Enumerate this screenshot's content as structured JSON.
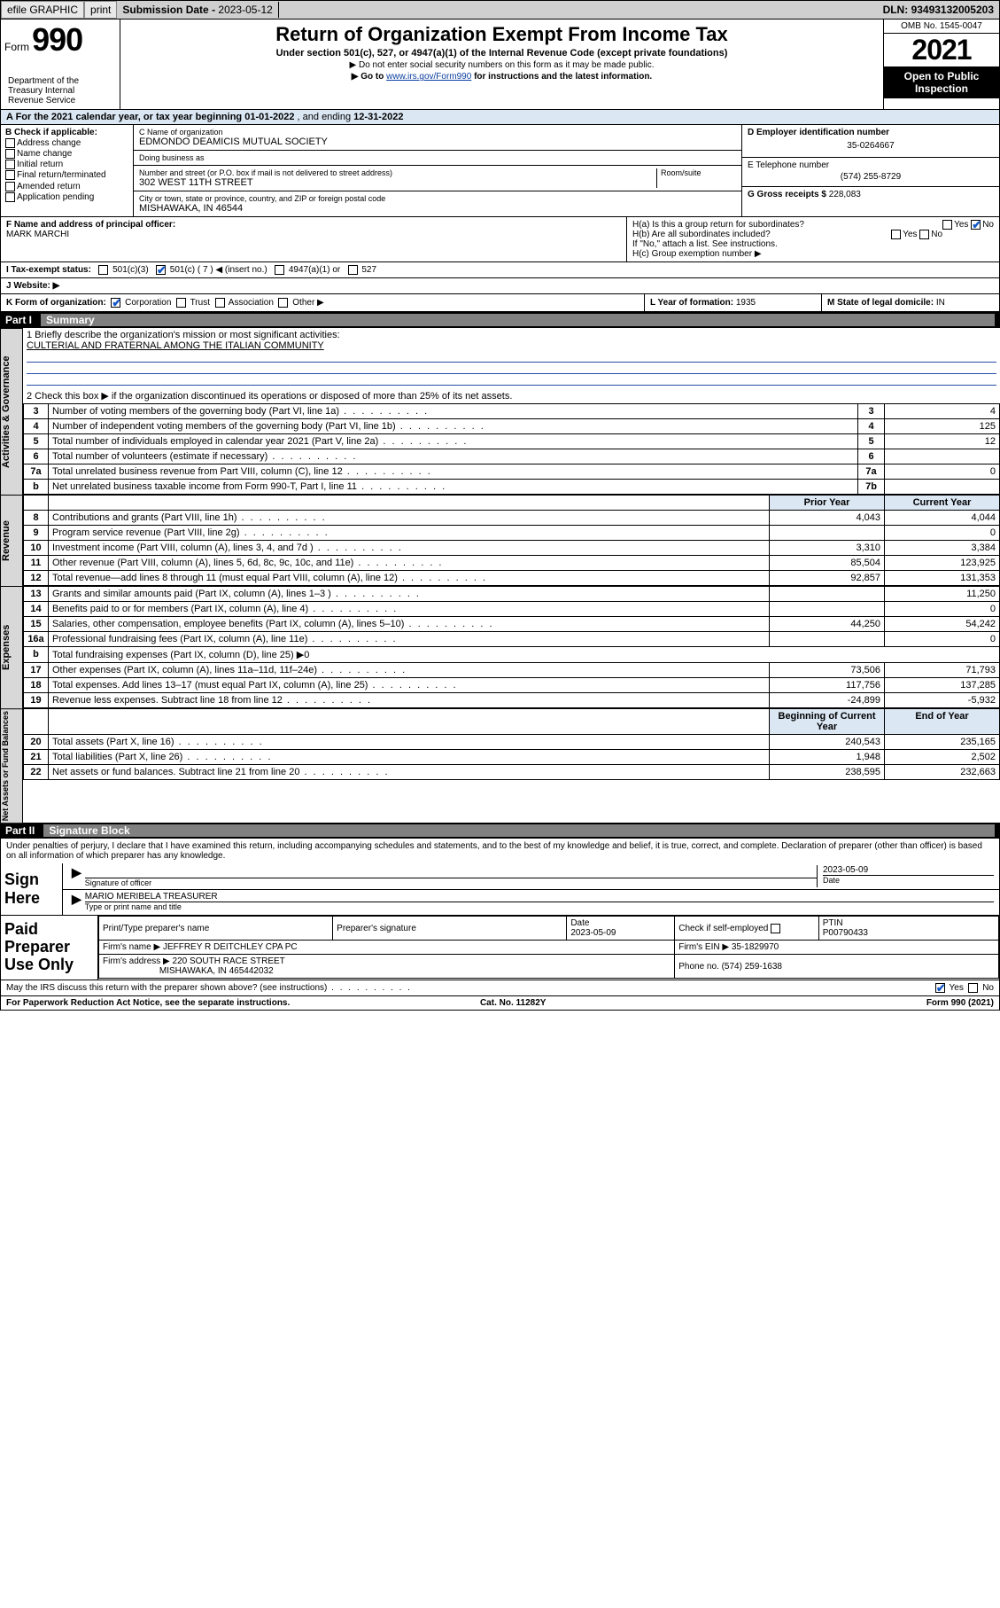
{
  "topbar": {
    "efile": "efile GRAPHIC",
    "print": "print",
    "subdate_label": "Submission Date - ",
    "subdate": "2023-05-12",
    "dln_label": "DLN: ",
    "dln": "93493132005203"
  },
  "header": {
    "form_prefix": "Form",
    "form_no": "990",
    "title": "Return of Organization Exempt From Income Tax",
    "subtitle": "Under section 501(c), 527, or 4947(a)(1) of the Internal Revenue Code (except private foundations)",
    "warn": "▶ Do not enter social security numbers on this form as it may be made public.",
    "goto_pre": "▶ Go to ",
    "goto_link": "www.irs.gov/Form990",
    "goto_post": " for instructions and the latest information.",
    "dept": "Department of the Treasury\nInternal Revenue Service",
    "omb": "OMB No. 1545-0047",
    "year": "2021",
    "open": "Open to Public Inspection"
  },
  "period": {
    "label_a": "A For the 2021 calendar year, or tax year beginning ",
    "begin": "01-01-2022",
    "mid": " , and ending ",
    "end": "12-31-2022"
  },
  "colB": {
    "hdr": "B Check if applicable:",
    "items": [
      "Address change",
      "Name change",
      "Initial return",
      "Final return/terminated",
      "Amended return",
      "Application pending"
    ]
  },
  "colC": {
    "name_lbl": "C Name of organization",
    "name": "EDMONDO DEAMICIS MUTUAL SOCIETY",
    "dba_lbl": "Doing business as",
    "dba": "",
    "addr_lbl": "Number and street (or P.O. box if mail is not delivered to street address)",
    "room_lbl": "Room/suite",
    "addr": "302 WEST 11TH STREET",
    "city_lbl": "City or town, state or province, country, and ZIP or foreign postal code",
    "city": "MISHAWAKA, IN  46544"
  },
  "colDE": {
    "d_lbl": "D Employer identification number",
    "d_val": "35-0264667",
    "e_lbl": "E Telephone number",
    "e_val": "(574) 255-8729",
    "g_lbl": "G Gross receipts $ ",
    "g_val": "228,083"
  },
  "f": {
    "lbl": "F Name and address of principal officer:",
    "val": "MARK MARCHI"
  },
  "h": {
    "ha": "H(a)  Is this a group return for subordinates?",
    "hb": "H(b)  Are all subordinates included?",
    "hb2": "If \"No,\" attach a list. See instructions.",
    "hc": "H(c)  Group exemption number ▶",
    "yes": "Yes",
    "no": "No"
  },
  "i": {
    "lbl": "I    Tax-exempt status:",
    "c3": "501(c)(3)",
    "c7": "501(c) ( 7 ) ◀ (insert no.)",
    "a1": "4947(a)(1) or",
    "s527": "527"
  },
  "j": {
    "lbl": "J   Website: ▶",
    "val": ""
  },
  "k": {
    "lbl": "K Form of organization:",
    "corp": "Corporation",
    "trust": "Trust",
    "assoc": "Association",
    "other": "Other ▶"
  },
  "l": {
    "lbl": "L Year of formation: ",
    "val": "1935"
  },
  "m": {
    "lbl": "M State of legal domicile: ",
    "val": "IN"
  },
  "parts": {
    "p1": "Part I",
    "p1t": "Summary",
    "p2": "Part II",
    "p2t": "Signature Block"
  },
  "summary": {
    "q1_lbl": "1  Briefly describe the organization's mission or most significant activities:",
    "q1_val": "CULTERIAL AND FRATERNAL AMONG THE ITALIAN COMMUNITY",
    "q2": "2   Check this box ▶       if the organization discontinued its operations or disposed of more than 25% of its net assets.",
    "rows_gov": [
      {
        "n": "3",
        "d": "Number of voting members of the governing body (Part VI, line 1a)",
        "r": "3",
        "v": "4"
      },
      {
        "n": "4",
        "d": "Number of independent voting members of the governing body (Part VI, line 1b)",
        "r": "4",
        "v": "125"
      },
      {
        "n": "5",
        "d": "Total number of individuals employed in calendar year 2021 (Part V, line 2a)",
        "r": "5",
        "v": "12"
      },
      {
        "n": "6",
        "d": "Total number of volunteers (estimate if necessary)",
        "r": "6",
        "v": ""
      },
      {
        "n": "7a",
        "d": "Total unrelated business revenue from Part VIII, column (C), line 12",
        "r": "7a",
        "v": "0"
      },
      {
        "n": "b",
        "d": "Net unrelated business taxable income from Form 990-T, Part I, line 11",
        "r": "7b",
        "v": ""
      }
    ],
    "py_hdr": "Prior Year",
    "cy_hdr": "Current Year",
    "rows_rev": [
      {
        "n": "8",
        "d": "Contributions and grants (Part VIII, line 1h)",
        "py": "4,043",
        "cy": "4,044"
      },
      {
        "n": "9",
        "d": "Program service revenue (Part VIII, line 2g)",
        "py": "",
        "cy": "0"
      },
      {
        "n": "10",
        "d": "Investment income (Part VIII, column (A), lines 3, 4, and 7d )",
        "py": "3,310",
        "cy": "3,384"
      },
      {
        "n": "11",
        "d": "Other revenue (Part VIII, column (A), lines 5, 6d, 8c, 9c, 10c, and 11e)",
        "py": "85,504",
        "cy": "123,925"
      },
      {
        "n": "12",
        "d": "Total revenue—add lines 8 through 11 (must equal Part VIII, column (A), line 12)",
        "py": "92,857",
        "cy": "131,353"
      }
    ],
    "rows_exp": [
      {
        "n": "13",
        "d": "Grants and similar amounts paid (Part IX, column (A), lines 1–3 )",
        "py": "",
        "cy": "11,250"
      },
      {
        "n": "14",
        "d": "Benefits paid to or for members (Part IX, column (A), line 4)",
        "py": "",
        "cy": "0"
      },
      {
        "n": "15",
        "d": "Salaries, other compensation, employee benefits (Part IX, column (A), lines 5–10)",
        "py": "44,250",
        "cy": "54,242"
      },
      {
        "n": "16a",
        "d": "Professional fundraising fees (Part IX, column (A), line 11e)",
        "py": "",
        "cy": "0"
      },
      {
        "n": "b",
        "d": "Total fundraising expenses (Part IX, column (D), line 25) ▶0",
        "py": "—",
        "cy": "—"
      },
      {
        "n": "17",
        "d": "Other expenses (Part IX, column (A), lines 11a–11d, 11f–24e)",
        "py": "73,506",
        "cy": "71,793"
      },
      {
        "n": "18",
        "d": "Total expenses. Add lines 13–17 (must equal Part IX, column (A), line 25)",
        "py": "117,756",
        "cy": "137,285"
      },
      {
        "n": "19",
        "d": "Revenue less expenses. Subtract line 18 from line 12",
        "py": "-24,899",
        "cy": "-5,932"
      }
    ],
    "boy_hdr": "Beginning of Current Year",
    "eoy_hdr": "End of Year",
    "rows_net": [
      {
        "n": "20",
        "d": "Total assets (Part X, line 16)",
        "py": "240,543",
        "cy": "235,165"
      },
      {
        "n": "21",
        "d": "Total liabilities (Part X, line 26)",
        "py": "1,948",
        "cy": "2,502"
      },
      {
        "n": "22",
        "d": "Net assets or fund balances. Subtract line 21 from line 20",
        "py": "238,595",
        "cy": "232,663"
      }
    ]
  },
  "vlabels": {
    "g": "Activities & Governance",
    "r": "Revenue",
    "e": "Expenses",
    "n": "Net Assets or Fund Balances"
  },
  "sigblock": {
    "decl": "Under penalties of perjury, I declare that I have examined this return, including accompanying schedules and statements, and to the best of my knowledge and belief, it is true, correct, and complete. Declaration of preparer (other than officer) is based on all information of which preparer has any knowledge.",
    "sign_here": "Sign Here",
    "sig_of": "Signature of officer",
    "date": "Date",
    "sigdate": "2023-05-09",
    "name_title": "MARIO MERIBELA  TREASURER",
    "name_lbl": "Type or print name and title"
  },
  "prep": {
    "hdr": "Paid Preparer Use Only",
    "pt_name_lbl": "Print/Type preparer's name",
    "pt_sig_lbl": "Preparer's signature",
    "pt_date_lbl": "Date",
    "pt_date": "2023-05-09",
    "pt_self_lbl": "Check        if self-employed",
    "ptin_lbl": "PTIN",
    "ptin": "P00790433",
    "firm_name_lbl": "Firm's name    ▶ ",
    "firm_name": "JEFFREY R DEITCHLEY CPA PC",
    "firm_ein_lbl": "Firm's EIN ▶ ",
    "firm_ein": "35-1829970",
    "firm_addr_lbl": "Firm's address ▶ ",
    "firm_addr1": "220 SOUTH RACE STREET",
    "firm_addr2": "MISHAWAKA, IN  465442032",
    "firm_phone_lbl": "Phone no. ",
    "firm_phone": "(574) 259-1638"
  },
  "may_discuss": {
    "q": "May the IRS discuss this return with the preparer shown above? (see instructions)",
    "yes": "Yes",
    "no": "No"
  },
  "footer": {
    "pra": "For Paperwork Reduction Act Notice, see the separate instructions.",
    "cat": "Cat. No. 11282Y",
    "form": "Form 990 (2021)"
  }
}
